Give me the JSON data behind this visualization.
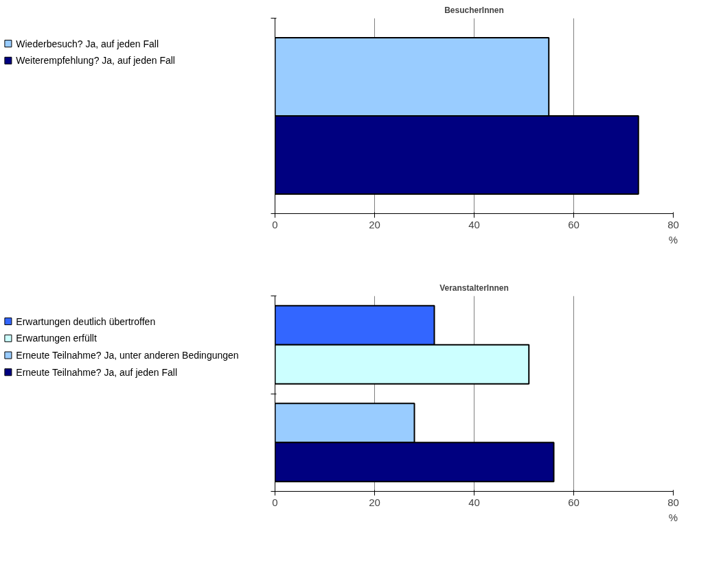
{
  "chart_data": [
    {
      "type": "bar",
      "orientation": "horizontal",
      "title": "BesucherInnen",
      "xlabel": "%",
      "categories": [
        null
      ],
      "series": [
        {
          "name": "Wiederbesuch? Ja, auf jeden Fall",
          "color": "#99ccff",
          "values": [
            55
          ]
        },
        {
          "name": "Weiterempfehlung? Ja, auf jeden Fall",
          "color": "#000080",
          "values": [
            73
          ]
        }
      ],
      "xlim": [
        0,
        80
      ],
      "xticks": [
        0,
        20,
        40,
        60,
        80
      ],
      "grid": "x",
      "legend": "left",
      "tick_labels": "x"
    },
    {
      "type": "bar",
      "orientation": "horizontal",
      "title": "VeranstalterInnen",
      "xlabel": "%",
      "categories": [
        null,
        null
      ],
      "series": [
        {
          "name": "Erwartungen deutlich übertroffen",
          "color": "#3366ff",
          "values": [
            32,
            null
          ]
        },
        {
          "name": "Erwartungen erfüllt",
          "color": "#ccffff",
          "values": [
            51,
            null
          ]
        },
        {
          "name": "Erneute Teilnahme? Ja, unter anderen Bedingungen",
          "color": "#99ccff",
          "values": [
            null,
            28
          ]
        },
        {
          "name": "Erneute Teilnahme? Ja, auf jeden Fall",
          "color": "#000080",
          "values": [
            null,
            56
          ]
        }
      ],
      "xlim": [
        0,
        80
      ],
      "xticks": [
        0,
        20,
        40,
        60,
        80
      ],
      "grid": "x",
      "legend": "left",
      "tick_labels": "x"
    }
  ]
}
